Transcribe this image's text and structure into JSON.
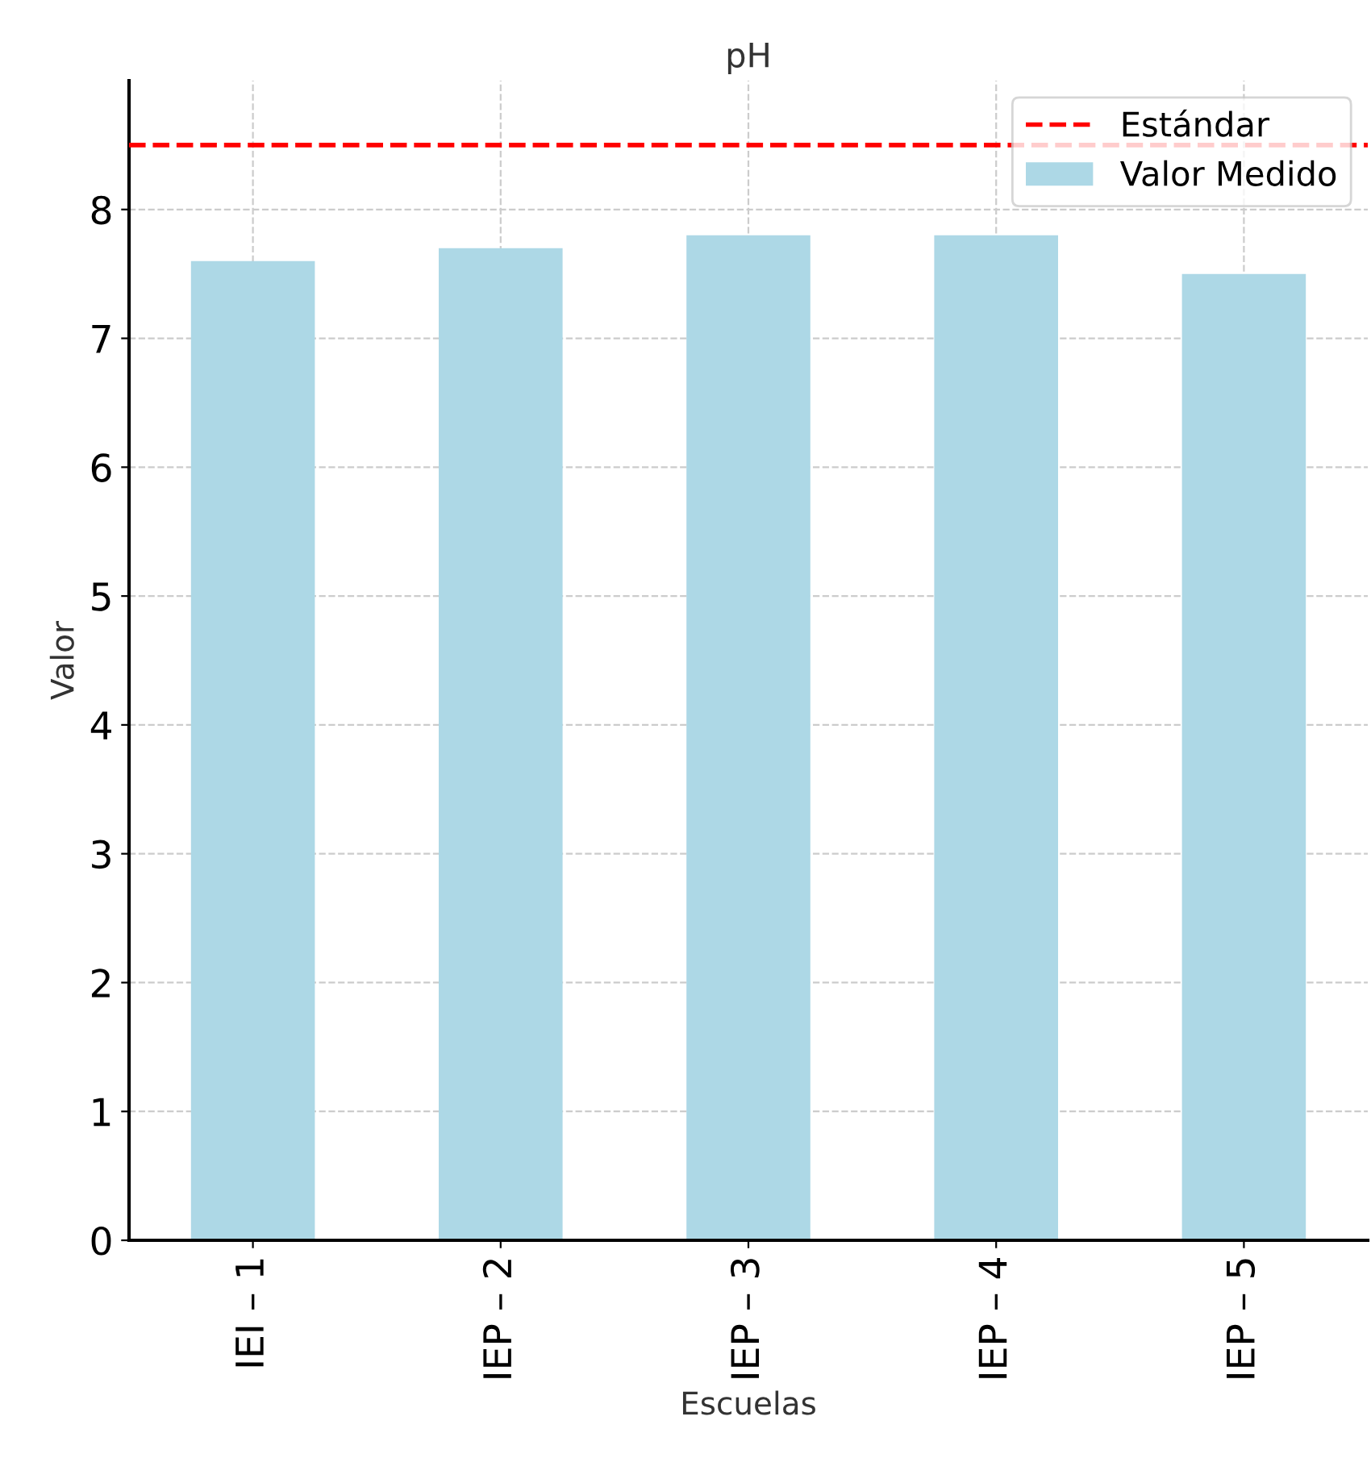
{
  "chart_data": {
    "type": "bar",
    "title": "pH",
    "xlabel": "Escuelas",
    "ylabel": "Valor",
    "categories": [
      "IEI – 1",
      "IEP – 2",
      "IEP – 3",
      "IEP – 4",
      "IEP – 5"
    ],
    "series": [
      {
        "name": "Valor Medido",
        "color": "#add8e6",
        "values": [
          7.6,
          7.7,
          7.8,
          7.8,
          7.5
        ]
      }
    ],
    "ylim": [
      0,
      9
    ],
    "yticks": [
      0,
      1,
      2,
      3,
      4,
      5,
      6,
      7,
      8
    ],
    "ref_lines": [
      {
        "axis": "y",
        "value": 8.5,
        "label": "Estándar",
        "color": "#ff0000",
        "line_style": "dashed"
      }
    ],
    "grid": true,
    "legend": "top right"
  }
}
